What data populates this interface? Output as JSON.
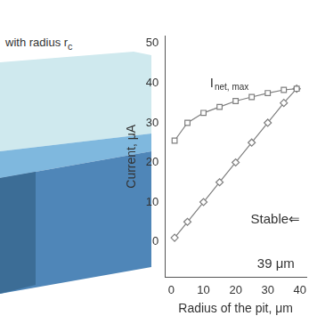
{
  "chart_data": {
    "type": "line",
    "x": [
      1,
      5,
      10,
      15,
      20,
      25,
      30,
      35,
      39
    ],
    "series": [
      {
        "color": "#7f7f7f",
        "marker": "square",
        "values": [
          25.5,
          30,
          32.5,
          34,
          35.5,
          36.5,
          37.5,
          38.3,
          38.6
        ]
      },
      {
        "color": "#7f7f7f",
        "marker": "diamond",
        "values": [
          1,
          5,
          10,
          15,
          20,
          25,
          30,
          35,
          38.6
        ]
      }
    ],
    "x_label": "Radius of the pit, μm",
    "y_label": "Current, μA",
    "xlim": [
      -2,
      42
    ],
    "ylim": [
      -9,
      52
    ],
    "xticks": [
      0,
      10,
      20,
      30,
      40
    ],
    "yticks": [
      0,
      10,
      20,
      30,
      40,
      50
    ],
    "grid": false,
    "annotations": [
      {
        "text": "I",
        "subscript": "net, max",
        "x": 12,
        "y": 40
      },
      {
        "text": "Stable⇐",
        "x": 24.7,
        "y": 5.6
      },
      {
        "text": "39 μm",
        "x": 26.7,
        "y": -5.6
      }
    ]
  },
  "diagram": {
    "label": "with radius r",
    "label_subscript": "c"
  }
}
